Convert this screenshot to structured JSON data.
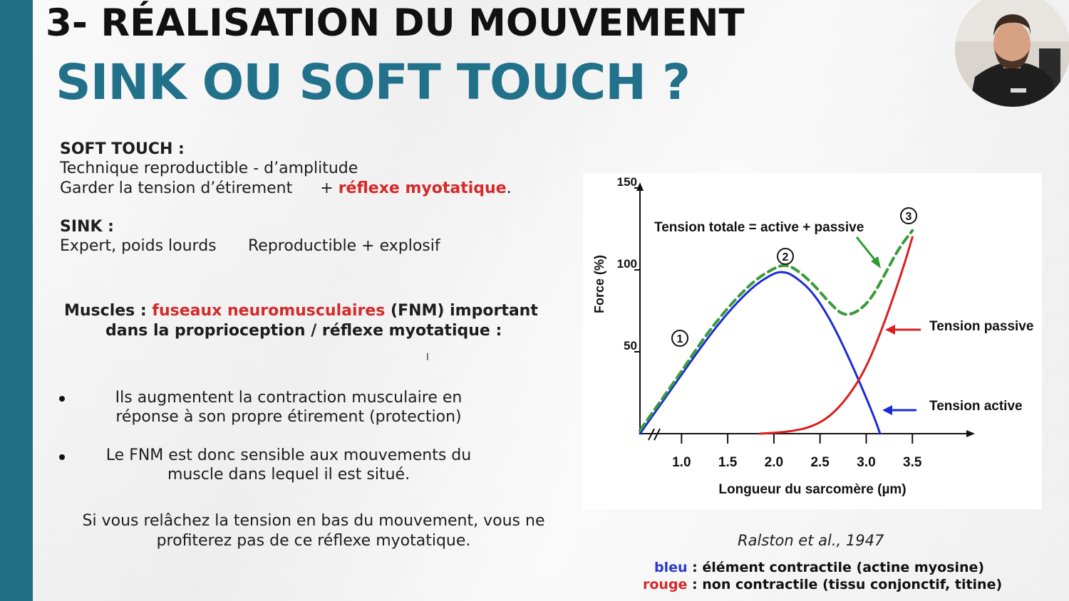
{
  "slide": {
    "title_line1": "3- RÉALISATION DU MOUVEMENT",
    "title_line2": "SINK OU SOFT TOUCH ?",
    "soft_touch": {
      "heading": "SOFT TOUCH :",
      "line1": "Technique reproductible - d’amplitude",
      "line2_a": "Garder la tension d’étirement",
      "line2_b": "+ ",
      "line2_red": "réflexe myotatique",
      "line2_c": "."
    },
    "sink": {
      "heading": "SINK :",
      "line_a": "Expert, poids lourds",
      "line_b": "Reproductible + explosif"
    },
    "muscles": {
      "label": "Muscles : ",
      "red": "fuseaux neuromusculaires",
      "rest": " (FNM)  important",
      "line2": "dans la proprioception / réflexe myotatique :"
    },
    "bullets": [
      {
        "line1": "Ils augmentent la contraction musculaire en",
        "line2": "réponse à son propre étirement (protection)"
      },
      {
        "line1": "Le FNM est donc sensible aux mouvements du",
        "line2": "muscle dans lequel il est situé."
      }
    ],
    "conclusion": {
      "line1": "Si vous relâchez la tension en bas du mouvement, vous ne",
      "line2": "profiterez pas de ce réflexe myotatique."
    },
    "citation": "Ralston et al., 1947",
    "legend": {
      "blue_word": "bleu",
      "blue_text": " : élément contractile (actine myosine)",
      "red_word": "rouge",
      "red_text": " : non contractile (tissu conjonctif, titine)"
    }
  },
  "chart_data": {
    "type": "line",
    "xlabel": "Longueur du sarcomère (µm)",
    "ylabel": "Force (%)",
    "x_ticks": [
      "1.0",
      "1.5",
      "2.0",
      "2.5",
      "3.0",
      "3.5"
    ],
    "y_ticks": [
      "50",
      "100",
      "150"
    ],
    "xlim": [
      0.55,
      4.1
    ],
    "ylim": [
      0,
      150
    ],
    "grid": false,
    "annotations": {
      "total": "Tension totale = active + passive",
      "passive": "Tension passive",
      "active": "Tension active",
      "marker1": "1",
      "marker2": "2",
      "marker3": "3"
    },
    "series": [
      {
        "name": "Tension active",
        "color": "#1a2bd6",
        "style": "solid",
        "x": [
          0.55,
          0.8,
          1.0,
          1.2,
          1.4,
          1.6,
          1.8,
          2.0,
          2.1,
          2.2,
          2.4,
          2.6,
          2.8,
          3.0,
          3.1,
          3.15
        ],
        "y": [
          0,
          20,
          36,
          52,
          67,
          80,
          91,
          98,
          99,
          97,
          88,
          71,
          48,
          22,
          8,
          0
        ]
      },
      {
        "name": "Tension passive",
        "color": "#d91f1f",
        "style": "solid",
        "x": [
          1.85,
          2.0,
          2.2,
          2.4,
          2.6,
          2.8,
          3.0,
          3.2,
          3.4,
          3.5
        ],
        "y": [
          0,
          0.5,
          1.5,
          4,
          10,
          22,
          40,
          68,
          101,
          120
        ]
      },
      {
        "name": "Tension totale = active + passive",
        "color": "#3a9a3a",
        "style": "dashed",
        "x": [
          0.55,
          0.8,
          1.0,
          1.2,
          1.4,
          1.6,
          1.8,
          2.0,
          2.1,
          2.2,
          2.4,
          2.6,
          2.75,
          2.9,
          3.05,
          3.2,
          3.35,
          3.5
        ],
        "y": [
          2,
          22,
          38,
          55,
          70,
          83,
          94,
          101,
          103,
          102,
          93,
          80,
          72,
          74,
          82,
          97,
          113,
          124
        ]
      }
    ]
  }
}
